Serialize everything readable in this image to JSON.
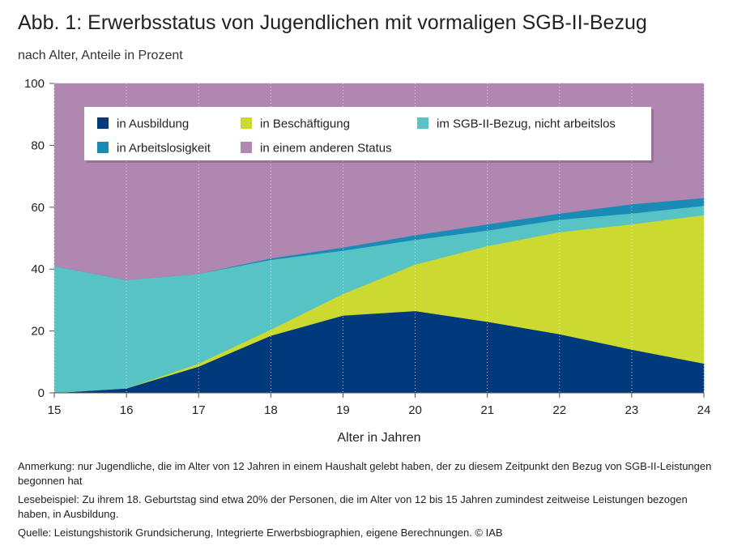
{
  "title": "Abb. 1: Erwerbsstatus von Jugendlichen mit vormaligen SGB-II-Bezug",
  "subtitle": "nach Alter, Anteile in Prozent",
  "notes": {
    "anmerkung": "Anmerkung: nur Jugendliche, die im Alter von 12 Jahren in einem Haushalt gelebt haben, der zu diesem Zeitpunkt den Bezug von SGB-II-Leistungen begonnen hat",
    "lesebeispiel": "Lesebeispiel: Zu ihrem 18. Geburtstag sind etwa 20% der Personen, die im Alter von 12 bis 15 Jahren zumindest zeitweise Leistungen bezogen haben, in Ausbildung.",
    "quelle": "Quelle: Leistungshistorik Grundsicherung, Integrierte Erwerbsbiographien, eigene Berechnungen.  © IAB"
  },
  "chart_data": {
    "type": "area",
    "stacked": true,
    "title": "Abb. 1: Erwerbsstatus von Jugendlichen mit vormaligen SGB-II-Bezug",
    "subtitle": "nach Alter, Anteile in Prozent",
    "xlabel": "Alter in Jahren",
    "ylabel": "",
    "x": [
      15,
      16,
      17,
      18,
      19,
      20,
      21,
      22,
      23,
      24
    ],
    "xlim": [
      15,
      24
    ],
    "ylim": [
      0,
      100
    ],
    "yticks": [
      0,
      20,
      40,
      60,
      80,
      100
    ],
    "grid": true,
    "legend_position": "top",
    "series": [
      {
        "name": "in Ausbildung",
        "color": "#003a7d",
        "values": [
          0,
          1.5,
          8.5,
          18.5,
          25,
          26.5,
          23,
          19,
          14,
          9.5
        ]
      },
      {
        "name": "in Beschäftigung",
        "color": "#cbd930",
        "values": [
          0,
          0,
          1,
          2,
          7,
          15,
          24.5,
          33,
          40.5,
          48
        ]
      },
      {
        "name": "im SGB-II-Bezug, nicht arbeitslos",
        "color": "#58c3c5",
        "values": [
          41,
          35,
          29,
          22.5,
          14,
          8,
          5,
          4,
          3.5,
          3
        ]
      },
      {
        "name": "in Arbeitslosigkeit",
        "color": "#1a8bb5",
        "values": [
          0,
          0,
          0,
          0.5,
          1,
          1.5,
          2,
          2,
          3,
          2.5
        ]
      },
      {
        "name": "in einem anderen Status",
        "color": "#b087b1",
        "values": [
          59,
          63.5,
          61.5,
          56.5,
          53,
          49,
          45.5,
          42,
          39,
          37
        ]
      }
    ]
  }
}
